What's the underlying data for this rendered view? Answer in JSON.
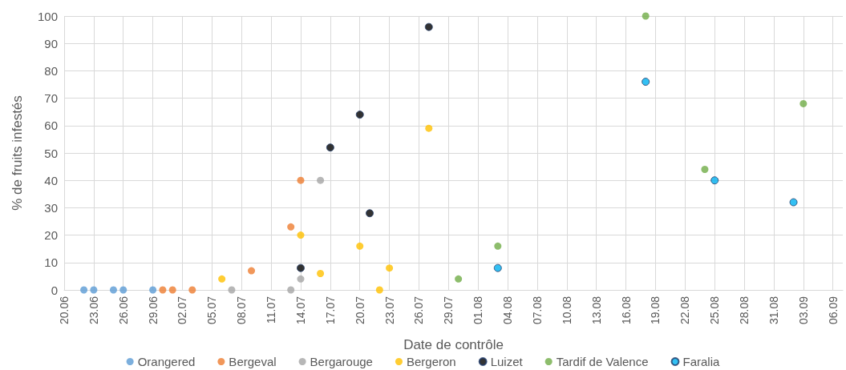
{
  "chart_data": {
    "type": "scatter",
    "xlabel": "Date de contrôle",
    "ylabel": "% de fruits infestés",
    "xlim": [
      "--06-20",
      "--09-07"
    ],
    "xticks": [
      {
        "value": "--06-20",
        "label": "20.06"
      },
      {
        "value": "--06-23",
        "label": "23.06"
      },
      {
        "value": "--06-26",
        "label": "26.06"
      },
      {
        "value": "--06-29",
        "label": "29.06"
      },
      {
        "value": "--07-02",
        "label": "02.07"
      },
      {
        "value": "--07-05",
        "label": "05.07"
      },
      {
        "value": "--07-08",
        "label": "08.07"
      },
      {
        "value": "--07-11",
        "label": "11.07"
      },
      {
        "value": "--07-14",
        "label": "14.07"
      },
      {
        "value": "--07-17",
        "label": "17.07"
      },
      {
        "value": "--07-20",
        "label": "20.07"
      },
      {
        "value": "--07-23",
        "label": "23.07"
      },
      {
        "value": "--07-26",
        "label": "26.07"
      },
      {
        "value": "--07-29",
        "label": "29.07"
      },
      {
        "value": "--08-01",
        "label": "01.08"
      },
      {
        "value": "--08-04",
        "label": "04.08"
      },
      {
        "value": "--08-07",
        "label": "07.08"
      },
      {
        "value": "--08-10",
        "label": "10.08"
      },
      {
        "value": "--08-13",
        "label": "13.08"
      },
      {
        "value": "--08-16",
        "label": "16.08"
      },
      {
        "value": "--08-19",
        "label": "19.08"
      },
      {
        "value": "--08-22",
        "label": "22.08"
      },
      {
        "value": "--08-25",
        "label": "25.08"
      },
      {
        "value": "--08-28",
        "label": "28.08"
      },
      {
        "value": "--08-31",
        "label": "31.08"
      },
      {
        "value": "--09-03",
        "label": "03.09"
      },
      {
        "value": "--09-06",
        "label": "06.09"
      }
    ],
    "ylim": [
      0,
      100
    ],
    "yticks": [
      0,
      10,
      20,
      30,
      40,
      50,
      60,
      70,
      80,
      90,
      100
    ],
    "grid": true,
    "legend": "bottom",
    "marker": "circle",
    "series": [
      {
        "name": "Orangered",
        "color": "#5b9bd5",
        "x": [
          "--06-22",
          "--06-23",
          "--06-25",
          "--06-26",
          "--06-29"
        ],
        "values": [
          0,
          0,
          0,
          0,
          0
        ]
      },
      {
        "name": "Bergeval",
        "color": "#ed7d31",
        "x": [
          "--06-30",
          "--07-01",
          "--07-03",
          "--07-09",
          "--07-13",
          "--07-14"
        ],
        "values": [
          0,
          0,
          0,
          7,
          23,
          40
        ]
      },
      {
        "name": "Bergarouge",
        "color": "#a5a5a5",
        "x": [
          "--07-07",
          "--07-13",
          "--07-14",
          "--07-16"
        ],
        "values": [
          0,
          0,
          4,
          40
        ]
      },
      {
        "name": "Bergeron",
        "color": "#ffc000",
        "x": [
          "--07-06",
          "--07-14",
          "--07-16",
          "--07-20",
          "--07-22",
          "--07-23",
          "--07-27"
        ],
        "values": [
          4,
          20,
          6,
          16,
          0,
          8,
          59
        ]
      },
      {
        "name": "Luizet",
        "color": "#000000",
        "x": [
          "--07-14",
          "--07-17",
          "--07-20",
          "--07-21",
          "--07-27"
        ],
        "values": [
          8,
          52,
          64,
          28,
          96
        ]
      },
      {
        "name": "Tardif de Valence",
        "color": "#70ad47",
        "x": [
          "--07-30",
          "--08-03",
          "--08-18",
          "--08-24",
          "--09-03"
        ],
        "values": [
          4,
          16,
          100,
          44,
          68
        ]
      },
      {
        "name": "Faralia",
        "color": "#00b0f0",
        "x": [
          "--08-03",
          "--08-18",
          "--08-25",
          "--09-02"
        ],
        "values": [
          8,
          76,
          40,
          32
        ]
      }
    ]
  }
}
